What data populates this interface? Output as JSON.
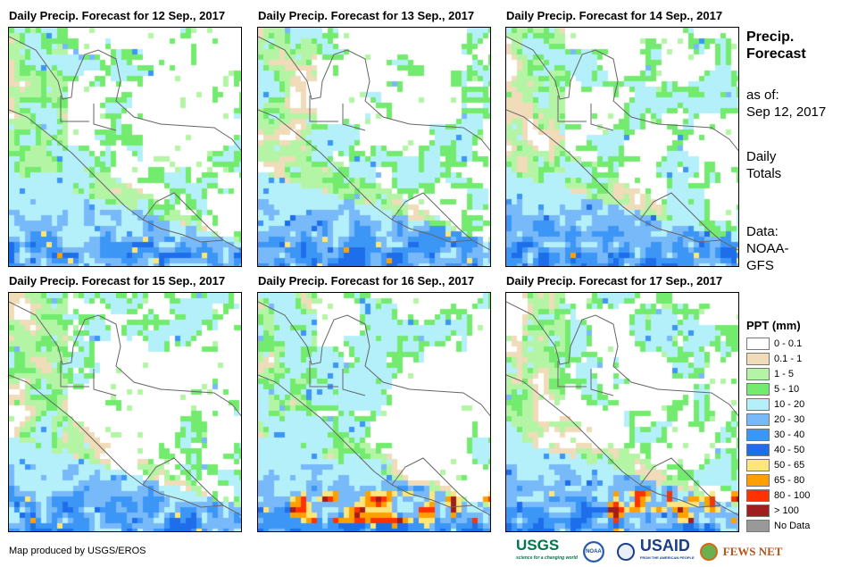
{
  "panels": [
    {
      "title": "Daily Precip. Forecast for 12 Sep., 2017"
    },
    {
      "title": "Daily Precip. Forecast for 13 Sep., 2017"
    },
    {
      "title": "Daily Precip. Forecast for 14 Sep., 2017"
    },
    {
      "title": "Daily Precip. Forecast for 15 Sep., 2017"
    },
    {
      "title": "Daily Precip. Forecast for 16 Sep., 2017"
    },
    {
      "title": "Daily Precip. Forecast for 17 Sep., 2017"
    }
  ],
  "side": {
    "title_line1": "Precip.",
    "title_line2": "Forecast",
    "asof_label": "as of:",
    "asof_date": "Sep 12, 2017",
    "totals_line1": "Daily",
    "totals_line2": "Totals",
    "data_line1": "Data:",
    "data_line2": "NOAA-",
    "data_line3": "GFS"
  },
  "legend": {
    "title": "PPT (mm)",
    "items": [
      {
        "label": "0 - 0.1",
        "color": "#ffffff"
      },
      {
        "label": "0.1 - 1",
        "color": "#f0dcb9"
      },
      {
        "label": "1 - 5",
        "color": "#b4f5a5"
      },
      {
        "label": "5 - 10",
        "color": "#73eb6e"
      },
      {
        "label": "10 - 20",
        "color": "#b4f0fa"
      },
      {
        "label": "20 - 30",
        "color": "#78b9fa"
      },
      {
        "label": "30 - 40",
        "color": "#3c96f5"
      },
      {
        "label": "40 - 50",
        "color": "#1e6eeb"
      },
      {
        "label": "50 - 65",
        "color": "#ffe678"
      },
      {
        "label": "65 - 80",
        "color": "#ffa000"
      },
      {
        "label": "80 - 100",
        "color": "#ff3200"
      },
      {
        "label": "> 100",
        "color": "#a01e1e"
      },
      {
        "label": "No Data",
        "color": "#999999"
      }
    ]
  },
  "credit": "Map produced by USGS/EROS",
  "logos": {
    "usgs": "USGS",
    "usgs_tagline": "science for a changing world",
    "noaa": "NOAA",
    "usaid": "USAID",
    "usaid_tagline": "FROM THE AMERICAN PEOPLE",
    "fewsnet": "FEWS NET"
  }
}
